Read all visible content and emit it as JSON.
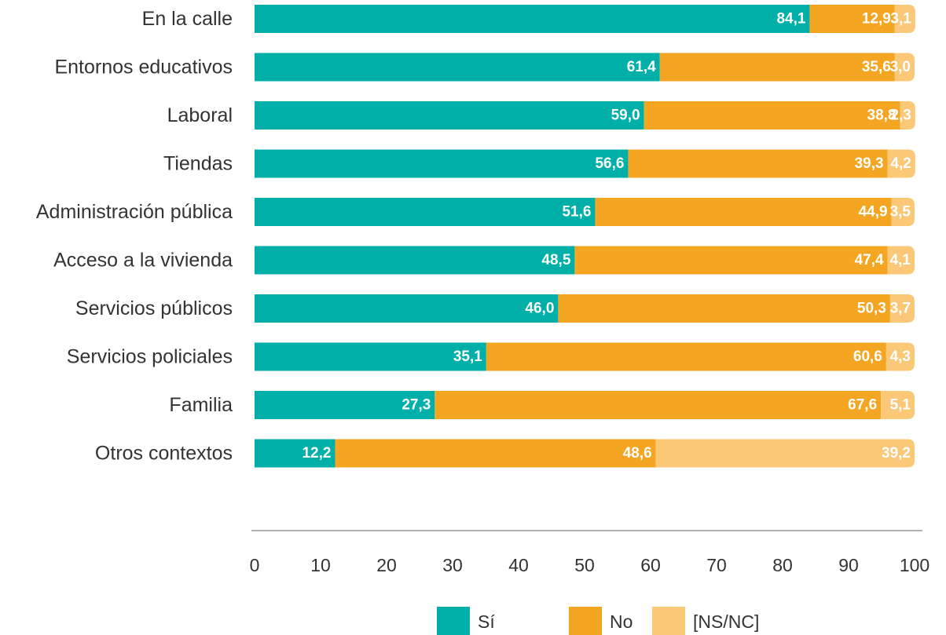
{
  "chart_data": {
    "type": "bar",
    "orientation": "horizontal",
    "stacked": true,
    "categories": [
      "En la calle",
      "Entornos educativos",
      "Laboral",
      "Tiendas",
      "Administración pública",
      "Acceso a la vivienda",
      "Servicios públicos",
      "Servicios policiales",
      "Familia",
      "Otros contextos"
    ],
    "series": [
      {
        "name": "Sí",
        "color": "#00b0a8",
        "values": [
          84.1,
          61.4,
          59.0,
          56.6,
          51.6,
          48.5,
          46.0,
          35.1,
          27.3,
          12.2
        ],
        "labels": [
          "84,1",
          "61,4",
          "59,0",
          "56,6",
          "51,6",
          "48,5",
          "46,0",
          "35,1",
          "27,3",
          "12,2"
        ]
      },
      {
        "name": "No",
        "color": "#f4a623",
        "values": [
          12.9,
          35.6,
          38.8,
          39.3,
          44.9,
          47.4,
          50.3,
          60.6,
          67.6,
          48.6
        ],
        "labels": [
          "12,9",
          "35,6",
          "38,8",
          "39,3",
          "44,9",
          "47,4",
          "50,3",
          "60,6",
          "67,6",
          "48,6"
        ]
      },
      {
        "name": "[NS/NC]",
        "color": "#fbc877",
        "values": [
          3.1,
          3.0,
          2.3,
          4.2,
          3.5,
          4.1,
          3.7,
          4.3,
          5.1,
          39.2
        ],
        "labels": [
          "3,1",
          "3,0",
          "2,3",
          "4,2",
          "3,5",
          "4,1",
          "3,7",
          "4,3",
          "5,1",
          "39,2"
        ]
      }
    ],
    "xlim": [
      0,
      100
    ],
    "xticks": [
      "0",
      "10",
      "20",
      "30",
      "40",
      "50",
      "60",
      "70",
      "80",
      "90",
      "100"
    ],
    "legend_position": "bottom",
    "grid": false,
    "axis_color": "#999999"
  }
}
